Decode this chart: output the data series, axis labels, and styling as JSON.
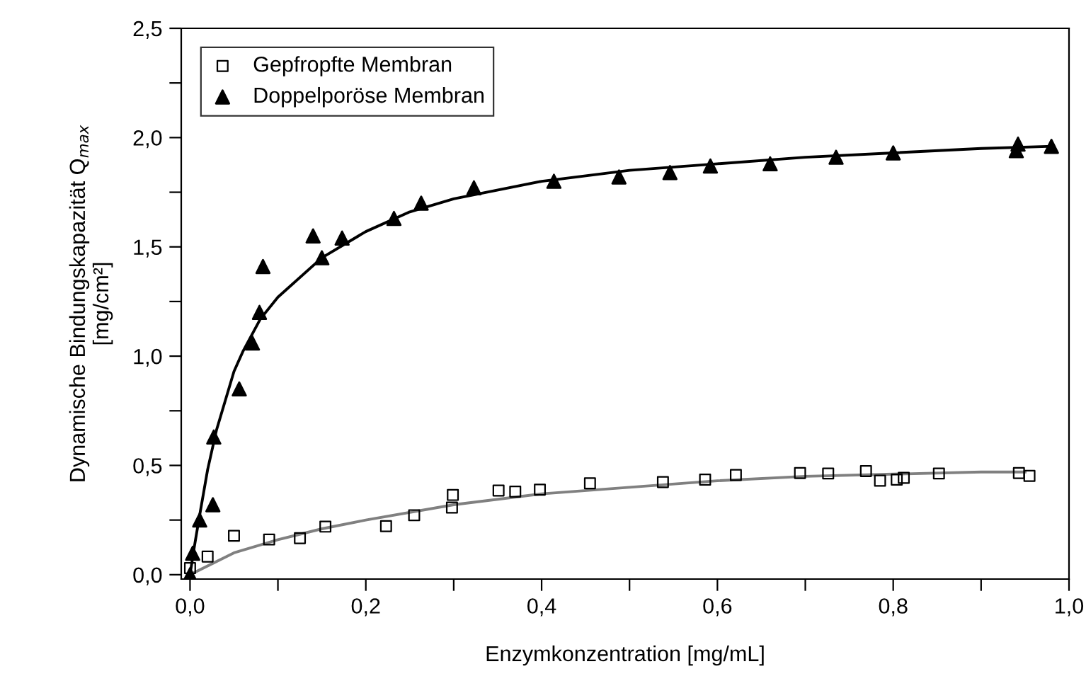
{
  "chart_data": {
    "type": "scatter",
    "xlabel": "Enzymkonzentration [mg/mL]",
    "ylabel": "Dynamische Bindungskapazität Q$_{max}$\n[mg/cm²]",
    "xlim": [
      -0.01,
      1.0
    ],
    "ylim": [
      -0.02,
      2.5
    ],
    "xticks": [
      {
        "value": 0,
        "label": "0,0"
      },
      {
        "value": 0.1,
        "label": null
      },
      {
        "value": 0.2,
        "label": "0,2"
      },
      {
        "value": 0.3,
        "label": null
      },
      {
        "value": 0.4,
        "label": "0,4"
      },
      {
        "value": 0.5,
        "label": null
      },
      {
        "value": 0.6,
        "label": "0,6"
      },
      {
        "value": 0.7,
        "label": null
      },
      {
        "value": 0.8,
        "label": "0,8"
      },
      {
        "value": 0.9,
        "label": null
      },
      {
        "value": 1.0,
        "label": "1,0"
      }
    ],
    "yticks": [
      {
        "value": 0,
        "label": "0,0"
      },
      {
        "value": 0.25,
        "label": null
      },
      {
        "value": 0.5,
        "label": "0,5"
      },
      {
        "value": 0.75,
        "label": null
      },
      {
        "value": 1.0,
        "label": "1,0"
      },
      {
        "value": 1.25,
        "label": null
      },
      {
        "value": 1.5,
        "label": "1,5"
      },
      {
        "value": 1.75,
        "label": null
      },
      {
        "value": 2.0,
        "label": "2,0"
      },
      {
        "value": 2.25,
        "label": null
      },
      {
        "value": 2.5,
        "label": "2,5"
      }
    ],
    "grid": false,
    "legend": "top left",
    "series": [
      {
        "name": "Gepfropfte Membran",
        "marker": "square",
        "color": "#000000",
        "x": [
          0,
          0.02,
          0.05,
          0.09,
          0.125,
          0.154,
          0.223,
          0.255,
          0.298,
          0.299,
          0.351,
          0.37,
          0.398,
          0.455,
          0.538,
          0.586,
          0.621,
          0.694,
          0.726,
          0.769,
          0.785,
          0.804,
          0.812,
          0.852,
          0.943,
          0.955
        ],
        "values": [
          0.03,
          0.083,
          0.178,
          0.161,
          0.167,
          0.22,
          0.222,
          0.272,
          0.307,
          0.365,
          0.385,
          0.38,
          0.389,
          0.418,
          0.424,
          0.435,
          0.456,
          0.465,
          0.463,
          0.474,
          0.43,
          0.435,
          0.443,
          0.463,
          0.465,
          0.452
        ]
      },
      {
        "name": "Doppelporöse Membran",
        "marker": "triangle",
        "color": "#000000",
        "x": [
          0,
          0.003,
          0.011,
          0.026,
          0.027,
          0.056,
          0.071,
          0.079,
          0.083,
          0.14,
          0.15,
          0.173,
          0.232,
          0.263,
          0.323,
          0.414,
          0.488,
          0.546,
          0.592,
          0.66,
          0.735,
          0.8,
          0.94,
          0.942,
          0.98
        ],
        "values": [
          0,
          0.098,
          0.25,
          0.32,
          0.63,
          0.85,
          1.06,
          1.2,
          1.41,
          1.55,
          1.45,
          1.54,
          1.63,
          1.7,
          1.77,
          1.8,
          1.82,
          1.84,
          1.87,
          1.88,
          1.91,
          1.93,
          1.94,
          1.97,
          1.96
        ]
      },
      {
        "type": "line",
        "marker": "none",
        "color": "#808080",
        "x": [
          0,
          0.05,
          0.1,
          0.15,
          0.2,
          0.3,
          0.4,
          0.5,
          0.6,
          0.7,
          0.8,
          0.9,
          0.95
        ],
        "values": [
          0,
          0.1,
          0.16,
          0.21,
          0.25,
          0.32,
          0.37,
          0.4,
          0.43,
          0.45,
          0.46,
          0.47,
          0.47
        ]
      },
      {
        "type": "line",
        "marker": "none",
        "color": "#000000",
        "x": [
          0,
          0.005,
          0.01,
          0.02,
          0.03,
          0.05,
          0.06,
          0.08,
          0.1,
          0.15,
          0.2,
          0.25,
          0.3,
          0.4,
          0.5,
          0.6,
          0.7,
          0.8,
          0.9,
          0.98
        ],
        "values": [
          0,
          0.13,
          0.25,
          0.48,
          0.66,
          0.93,
          1.02,
          1.17,
          1.27,
          1.45,
          1.57,
          1.66,
          1.72,
          1.8,
          1.85,
          1.88,
          1.91,
          1.93,
          1.95,
          1.96
        ]
      }
    ]
  }
}
